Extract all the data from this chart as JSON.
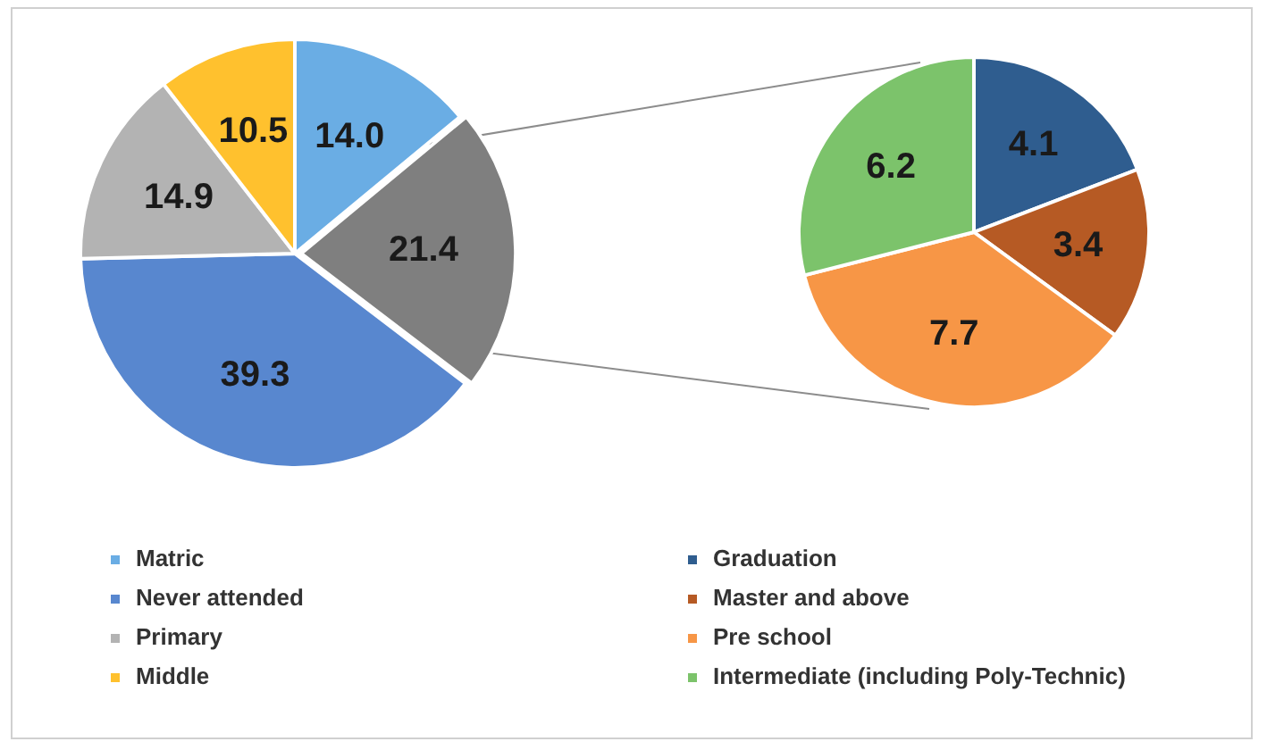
{
  "chart_data": [
    {
      "type": "pie",
      "categories": [
        "Matric",
        null,
        "Never attended",
        "Primary",
        "Middle"
      ],
      "values": [
        14.0,
        21.4,
        39.3,
        14.9,
        10.5
      ],
      "value_labels": [
        "14.0",
        "21.4",
        "39.3",
        "14.9",
        "10.5"
      ],
      "colors": [
        "#6aade4",
        "#7f7f7f",
        "#5887cf",
        "#b3b3b3",
        "#ffc12e"
      ],
      "legend": "bottom"
    },
    {
      "type": "pie",
      "categories": [
        "Graduation",
        "Master and above",
        "Pre school",
        "Intermediate (including Poly-Technic)"
      ],
      "values": [
        4.1,
        3.4,
        7.7,
        6.2
      ],
      "value_labels": [
        "4.1",
        "3.4",
        "7.7",
        "6.2"
      ],
      "colors": [
        "#2f5d8f",
        "#b65a24",
        "#f79646",
        "#7cc36b"
      ],
      "legend": "bottom"
    }
  ]
}
